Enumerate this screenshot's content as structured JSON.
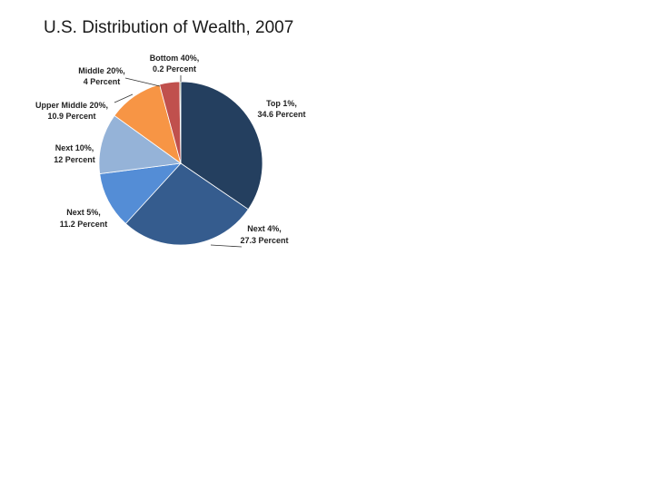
{
  "chart_data": {
    "type": "pie",
    "title": "U.S. Distribution of Wealth, 2007",
    "slices": [
      {
        "name": "Top 1%",
        "label_line1": "Top 1%,",
        "label_line2": "34.6 Percent",
        "value": 34.6,
        "color": "#243f5f"
      },
      {
        "name": "Next 4%",
        "label_line1": "Next 4%,",
        "label_line2": "27.3 Percent",
        "value": 27.3,
        "color": "#355c8e"
      },
      {
        "name": "Next 5%",
        "label_line1": "Next 5%,",
        "label_line2": "11.2 Percent",
        "value": 11.2,
        "color": "#548dd6"
      },
      {
        "name": "Next 10%",
        "label_line1": "Next 10%,",
        "label_line2": "12 Percent",
        "value": 12,
        "color": "#95b3d8"
      },
      {
        "name": "Upper Middle 20%",
        "label_line1": "Upper Middle 20%,",
        "label_line2": "10.9 Percent",
        "value": 10.9,
        "color": "#f79545"
      },
      {
        "name": "Middle 20%",
        "label_line1": "Middle 20%,",
        "label_line2": "4 Percent",
        "value": 4,
        "color": "#c0504d"
      },
      {
        "name": "Bottom 40%",
        "label_line1": "Bottom 40%,",
        "label_line2": "0.2 Percent",
        "value": 0.2,
        "color": "#4f6228"
      }
    ]
  }
}
